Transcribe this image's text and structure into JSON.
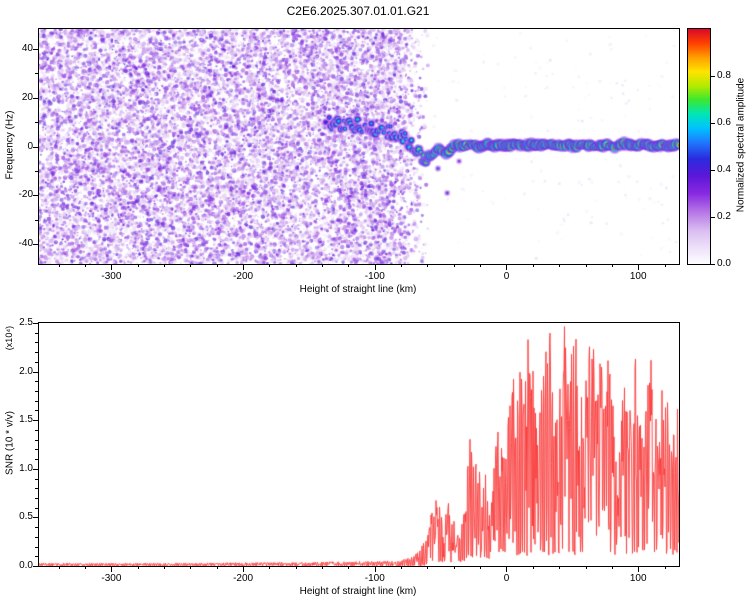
{
  "figure": {
    "title": "C2E6.2025.307.01.01.G21",
    "background": "#ffffff",
    "axis_color": "#000000"
  },
  "chart_data": [
    {
      "type": "heatmap",
      "title": "C2E6.2025.307.01.01.G21",
      "xlabel": "Height of straight line (km)",
      "ylabel": "Frequency (Hz)",
      "xlim": [
        -355,
        131
      ],
      "ylim": [
        -48,
        48
      ],
      "xticks": [
        -300,
        -200,
        -100,
        0,
        100
      ],
      "yticks": [
        -40,
        -20,
        0,
        20,
        40
      ],
      "x_minor_step": 20,
      "y_minor_step": 10,
      "colorbar": {
        "label": "Normalized spectral amplitude",
        "ticks": [
          "0.0",
          "0.2",
          "0.4",
          "0.6",
          "0.8"
        ],
        "tick_values": [
          0,
          0.2,
          0.4,
          0.6,
          0.8
        ],
        "range": [
          0,
          1
        ]
      },
      "colormap_stops": [
        [
          0.0,
          "#ffffff"
        ],
        [
          0.06,
          "#f1e6fa"
        ],
        [
          0.14,
          "#dcc0f2"
        ],
        [
          0.22,
          "#b87ae6"
        ],
        [
          0.3,
          "#8a2be2"
        ],
        [
          0.38,
          "#5a18d8"
        ],
        [
          0.45,
          "#2b2bdf"
        ],
        [
          0.52,
          "#1f7aff"
        ],
        [
          0.58,
          "#00c3ff"
        ],
        [
          0.64,
          "#00e6b8"
        ],
        [
          0.7,
          "#3ae830"
        ],
        [
          0.76,
          "#b4ea00"
        ],
        [
          0.82,
          "#ffe400"
        ],
        [
          0.88,
          "#ffa000"
        ],
        [
          0.94,
          "#ff4200"
        ],
        [
          1.0,
          "#dc0a28"
        ]
      ],
      "noise": {
        "x_start": -355,
        "x_end": -58,
        "fade_start": -90,
        "max_amp": 0.34,
        "dot_count": 16000
      },
      "signal_trace": [
        [
          -137,
          10.5,
          0.45
        ],
        [
          -133,
          9.2,
          0.6
        ],
        [
          -129,
          10.2,
          0.68
        ],
        [
          -125,
          8.6,
          0.55
        ],
        [
          -121,
          9.6,
          0.72
        ],
        [
          -117,
          8.2,
          0.6
        ],
        [
          -113,
          9.0,
          0.66
        ],
        [
          -109,
          7.6,
          0.58
        ],
        [
          -105,
          8.2,
          0.52
        ],
        [
          -101,
          6.8,
          0.6
        ],
        [
          -97,
          7.2,
          0.66
        ],
        [
          -93,
          5.8,
          0.62
        ],
        [
          -89,
          6.2,
          0.58
        ],
        [
          -85,
          4.8,
          0.64
        ],
        [
          -81,
          5.2,
          0.68
        ],
        [
          -77,
          3.2,
          0.62
        ],
        [
          -73,
          1.2,
          0.66
        ],
        [
          -69,
          -1.8,
          0.7
        ],
        [
          -65,
          -4.2,
          0.74
        ],
        [
          -61,
          -5.2,
          0.8
        ],
        [
          -58,
          -3.8,
          0.85
        ],
        [
          -55,
          -2.4,
          0.88
        ],
        [
          -52,
          -1.2,
          0.9
        ],
        [
          -49,
          -1.8,
          0.93
        ],
        [
          -46,
          -2.6,
          0.9
        ],
        [
          -43,
          -1.2,
          0.94
        ],
        [
          -40,
          -0.2,
          0.96
        ],
        [
          -36,
          0.6,
          0.95
        ],
        [
          -31,
          0.1,
          0.96
        ],
        [
          -26,
          0.7,
          0.95
        ],
        [
          -21,
          0.2,
          0.97
        ],
        [
          -16,
          0.8,
          0.95
        ],
        [
          -11,
          0.2,
          0.96
        ],
        [
          -6,
          0.6,
          0.97
        ],
        [
          -1,
          0.1,
          0.96
        ],
        [
          5,
          0.7,
          0.97
        ],
        [
          12,
          0.2,
          0.96
        ],
        [
          19,
          0.8,
          0.97
        ],
        [
          26,
          0.3,
          0.96
        ],
        [
          33,
          0.9,
          0.97
        ],
        [
          40,
          0.3,
          0.96
        ],
        [
          47,
          0.8,
          0.97
        ],
        [
          54,
          0.2,
          0.96
        ],
        [
          61,
          0.7,
          0.97
        ],
        [
          68,
          0.2,
          0.96
        ],
        [
          75,
          0.8,
          0.97
        ],
        [
          82,
          0.3,
          0.96
        ],
        [
          89,
          0.9,
          0.97
        ],
        [
          96,
          0.3,
          0.96
        ],
        [
          103,
          0.8,
          0.97
        ],
        [
          110,
          0.2,
          0.96
        ],
        [
          117,
          0.7,
          0.97
        ],
        [
          124,
          0.3,
          0.96
        ],
        [
          131,
          0.6,
          0.97
        ]
      ],
      "extra_blobs": [
        [
          -45,
          -19,
          0.45
        ],
        [
          -52,
          -9,
          0.5
        ],
        [
          -36,
          -6,
          0.4
        ]
      ]
    },
    {
      "type": "line",
      "xlabel": "Height of straight line (km)",
      "ylabel": "SNR (10 * v/v)",
      "y_scale_label": "(x10⁴)",
      "xlim": [
        -355,
        131
      ],
      "ylim": [
        0,
        2.5
      ],
      "xticks": [
        -300,
        -200,
        -100,
        0,
        100
      ],
      "x_minor_step": 20,
      "yticks": [
        "0.0",
        "0.5",
        "1.0",
        "1.5",
        "2.0",
        "2.5"
      ],
      "ytick_values": [
        0,
        0.5,
        1.0,
        1.5,
        2.0,
        2.5
      ],
      "y_minor_step": 0.1,
      "line_color": "#f93b3b",
      "envelope": [
        [
          -355,
          0,
          0.03
        ],
        [
          -250,
          0,
          0.03
        ],
        [
          -150,
          0,
          0.04
        ],
        [
          -100,
          0,
          0.05
        ],
        [
          -80,
          0,
          0.06
        ],
        [
          -70,
          0,
          0.1
        ],
        [
          -64,
          0,
          0.22
        ],
        [
          -60,
          0.02,
          0.38
        ],
        [
          -56,
          0.03,
          0.6
        ],
        [
          -52,
          0.03,
          0.72
        ],
        [
          -48,
          0.03,
          0.4
        ],
        [
          -45,
          0.04,
          0.78
        ],
        [
          -42,
          0.04,
          0.45
        ],
        [
          -39,
          0.05,
          0.55
        ],
        [
          -35,
          0.04,
          0.28
        ],
        [
          -31,
          0.06,
          0.9
        ],
        [
          -28,
          0.1,
          1.45
        ],
        [
          -25,
          0.08,
          0.95
        ],
        [
          -22,
          0.1,
          1.15
        ],
        [
          -19,
          0.08,
          0.7
        ],
        [
          -16,
          0.1,
          1.1
        ],
        [
          -13,
          0.06,
          0.5
        ],
        [
          -10,
          0.1,
          1.0
        ],
        [
          -7,
          0.15,
          1.5
        ],
        [
          -4,
          0.1,
          1.2
        ],
        [
          0,
          0.15,
          1.45
        ],
        [
          4,
          0.15,
          2.0
        ],
        [
          8,
          0.1,
          2.3
        ],
        [
          12,
          0.15,
          1.9
        ],
        [
          16,
          0.1,
          2.35
        ],
        [
          20,
          0.15,
          2.1
        ],
        [
          24,
          0.1,
          1.15
        ],
        [
          28,
          0.15,
          2.4
        ],
        [
          33,
          0.1,
          2.5
        ],
        [
          38,
          0.15,
          1.65
        ],
        [
          43,
          0.1,
          2.5
        ],
        [
          48,
          0.15,
          2.25
        ],
        [
          53,
          0.1,
          2.45
        ],
        [
          58,
          0.15,
          1.55
        ],
        [
          63,
          0.1,
          2.35
        ],
        [
          68,
          0.15,
          2.5
        ],
        [
          73,
          0.1,
          1.9
        ],
        [
          78,
          0.15,
          2.25
        ],
        [
          83,
          0.1,
          1.25
        ],
        [
          88,
          0.15,
          2.05
        ],
        [
          93,
          0.1,
          1.55
        ],
        [
          98,
          0.15,
          2.4
        ],
        [
          103,
          0.1,
          1.35
        ],
        [
          108,
          0.15,
          2.5
        ],
        [
          113,
          0.1,
          1.75
        ],
        [
          118,
          0.15,
          2.2
        ],
        [
          124,
          0.1,
          1.45
        ],
        [
          131,
          0.15,
          1.7
        ]
      ]
    }
  ]
}
